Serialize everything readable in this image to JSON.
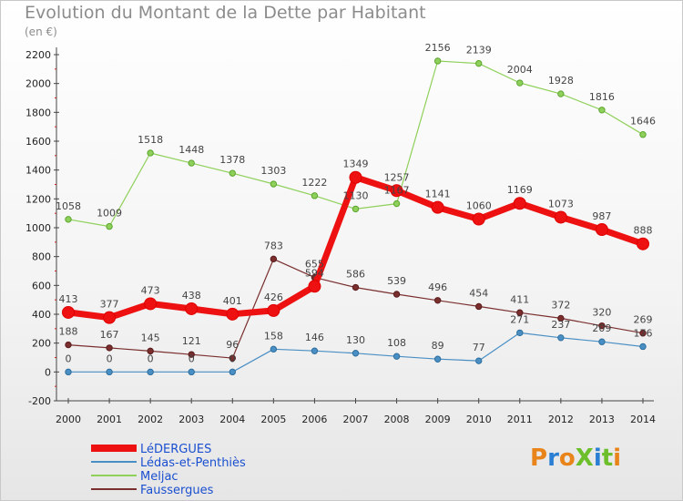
{
  "chart_data": {
    "type": "line",
    "title": "Evolution du Montant de la Dette par Habitant",
    "subtitle": "(en €)",
    "xlabel": "",
    "ylabel": "",
    "ylim": [
      -200,
      2200
    ],
    "y_ticks": [
      -200,
      0,
      200,
      400,
      600,
      800,
      1000,
      1200,
      1400,
      1600,
      1800,
      2000,
      2200
    ],
    "categories": [
      "2000",
      "2001",
      "2002",
      "2003",
      "2004",
      "2005",
      "2006",
      "2007",
      "2008",
      "2009",
      "2010",
      "2011",
      "2012",
      "2013",
      "2014"
    ],
    "grid": false,
    "legend_position": "bottom-left",
    "series": [
      {
        "name": "Faussergues",
        "color": "#7a2e2e",
        "values": [
          188,
          167,
          145,
          121,
          96,
          783,
          655,
          586,
          539,
          496,
          454,
          411,
          372,
          320,
          269
        ]
      },
      {
        "name": "Lédas-et-Penthiès",
        "color": "#4a8fc4",
        "values": [
          0,
          0,
          0,
          0,
          0,
          158,
          146,
          130,
          108,
          89,
          77,
          271,
          237,
          209,
          176
        ]
      },
      {
        "name": "Meljac",
        "color": "#8fd05a",
        "values": [
          1058,
          1009,
          1518,
          1448,
          1378,
          1303,
          1222,
          1130,
          1167,
          2156,
          2139,
          2004,
          1928,
          1816,
          1646
        ]
      },
      {
        "name": "LéDERGUES",
        "color": "#ee1111",
        "values": [
          413,
          377,
          473,
          438,
          401,
          426,
          594,
          1349,
          1257,
          1141,
          1060,
          1169,
          1073,
          987,
          888
        ]
      }
    ],
    "legend": [
      "LéDERGUES",
      "Lédas-et-Penthiès",
      "Meljac",
      "Faussergues"
    ],
    "data_labels": {
      "Faussergues": [
        "188",
        "167",
        "145",
        "121",
        "96",
        "783",
        "655",
        "586",
        "539",
        "496",
        "454",
        "411",
        "372",
        "320",
        "269"
      ],
      "Lédas-et-Penthiès": [
        "0",
        "0",
        "0",
        "0",
        "0",
        "158",
        "146",
        "130",
        "108",
        "89",
        "77",
        "271",
        "237",
        "209",
        "176"
      ],
      "Meljac": [
        "1058",
        "1009",
        "1518",
        "1448",
        "1378",
        "1303",
        "1222",
        "1130",
        "1167",
        "2156",
        "2139",
        "2004",
        "1928",
        "1816",
        "1646"
      ],
      "LéDERGUES": [
        "413",
        "377",
        "473",
        "438",
        "401",
        "426",
        "594",
        "1349",
        "1257",
        "1141",
        "1060",
        "1169",
        "1073",
        "987",
        "888"
      ]
    }
  },
  "logo": {
    "text": "ProXiti"
  }
}
